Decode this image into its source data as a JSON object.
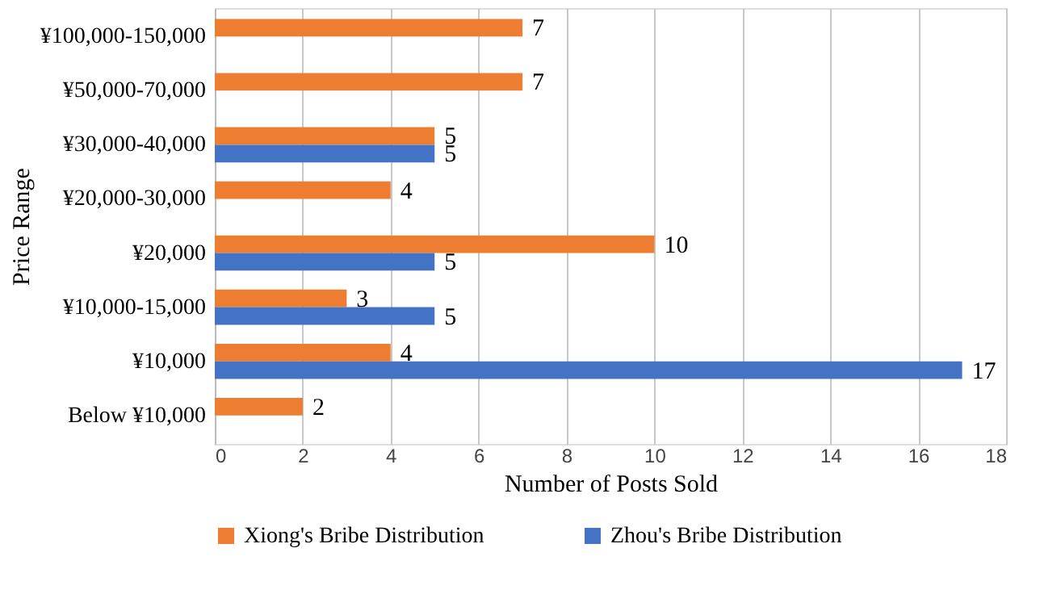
{
  "chart_data": {
    "type": "bar",
    "orientation": "horizontal",
    "xlabel": "Number of Posts Sold",
    "ylabel": "Price Range",
    "categories": [
      "¥100,000-150,000",
      "¥50,000-70,000",
      "¥30,000-40,000",
      "¥20,000-30,000",
      "¥20,000",
      "¥10,000-15,000",
      "¥10,000",
      "Below ¥10,000"
    ],
    "series": [
      {
        "name": "Xiong's Bribe Distribution",
        "color": "#ed7d31",
        "values": [
          7,
          7,
          5,
          4,
          10,
          3,
          4,
          2
        ]
      },
      {
        "name": "Zhou's Bribe Distribution",
        "color": "#4472c4",
        "values": [
          null,
          null,
          5,
          null,
          5,
          5,
          17,
          null
        ]
      }
    ],
    "xlim": [
      0,
      18
    ],
    "xticks": [
      0,
      2,
      4,
      6,
      8,
      10,
      12,
      14,
      16,
      18
    ],
    "grid": "x",
    "legend": "bottom",
    "data_labels": true
  }
}
